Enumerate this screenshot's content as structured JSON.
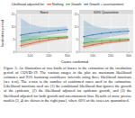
{
  "chart_data": [
    {
      "type": "line",
      "title": "None",
      "grid": true,
      "x": [
        50,
        100,
        150,
        200,
        250,
        300
      ],
      "xlim": [
        25,
        325
      ],
      "xticks": [
        100,
        200,
        300
      ],
      "ylim": [
        0,
        15
      ],
      "yticks": [
        0,
        5,
        10,
        15
      ],
      "series": [
        {
          "name": "Nothing",
          "color": "#e4572e",
          "values": [
            2.6,
            3.4,
            4.2,
            4.9,
            5.4,
            5.8
          ],
          "lower": [
            1.6,
            2.5,
            3.4,
            4.2,
            4.8,
            5.2
          ],
          "upper": [
            3.8,
            4.4,
            5.1,
            5.7,
            6.1,
            6.4
          ]
        },
        {
          "name": "Growth",
          "color": "#4daf4a",
          "values": [
            4.4,
            5.0,
            5.4,
            5.7,
            5.9,
            6.1
          ],
          "lower": [
            2.8,
            3.8,
            4.5,
            4.9,
            5.2,
            5.5
          ],
          "upper": [
            7.2,
            6.6,
            6.5,
            6.5,
            6.6,
            6.7
          ]
        },
        {
          "name": "Growth + ascertainment",
          "color": "#377eb8",
          "values": [
            6.8,
            7.4,
            7.9,
            8.3,
            8.7,
            9.0
          ],
          "lower": [
            3.6,
            5.0,
            6.1,
            6.8,
            7.3,
            7.7
          ],
          "upper": [
            13.5,
            11.2,
            10.2,
            9.9,
            10.0,
            10.3
          ]
        }
      ]
    },
    {
      "type": "line",
      "title": "60% Quarantine",
      "grid": true,
      "x": [
        50,
        100,
        150,
        200,
        250,
        300
      ],
      "xlim": [
        25,
        325
      ],
      "xticks": [
        100,
        200,
        300
      ],
      "ylim": [
        0,
        15
      ],
      "yticks": [
        0,
        5,
        10,
        15
      ],
      "series": [
        {
          "color": "#e4572e",
          "values": [
            2.2,
            2.9,
            3.5,
            4.0,
            4.4,
            4.7
          ],
          "lower": [
            1.3,
            2.1,
            2.8,
            3.4,
            3.8,
            4.2
          ],
          "upper": [
            3.3,
            3.8,
            4.3,
            4.7,
            5.0,
            5.3
          ]
        },
        {
          "color": "#4daf4a",
          "values": [
            3.6,
            4.1,
            4.5,
            4.8,
            5.0,
            5.2
          ],
          "lower": [
            2.2,
            3.0,
            3.6,
            4.0,
            4.3,
            4.6
          ],
          "upper": [
            6.2,
            5.6,
            5.5,
            5.6,
            5.7,
            5.8
          ]
        },
        {
          "color": "#377eb8",
          "values": [
            6.2,
            6.9,
            7.4,
            7.8,
            8.1,
            8.4
          ],
          "lower": [
            3.1,
            4.4,
            5.5,
            6.2,
            6.7,
            7.1
          ],
          "upper": [
            12.8,
            10.6,
            9.7,
            9.4,
            9.5,
            9.7
          ]
        }
      ]
    }
  ],
  "legend_title": "Likelihood adjusted for:",
  "x_label": "Cases confirmed",
  "y_label": "Incubation period",
  "caption": "Figure 3: An illustration of two kinds of biases in the estimation of the incubation period of COVID-19. The various ranges in the plot are maximum likelihood estimates and 95% bootstrap confidence intervals using three likelihood functions (see text). The x-axis is the number of confirmed cases used in the estimation. Likelihood functions used are (1) the conditional likelihood that ignores the growth of the epidemic, (2) the likelihood adjusted for epidemic growth, and (3) the likelihood adjusted for both growth and ascertainment bias. Results of more precise models (3, 4) are shown in the right panel, where 60% of the cases are quarantined."
}
